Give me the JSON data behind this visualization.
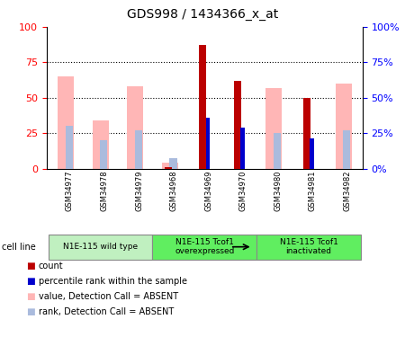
{
  "title": "GDS998 / 1434366_x_at",
  "samples": [
    "GSM34977",
    "GSM34978",
    "GSM34979",
    "GSM34968",
    "GSM34969",
    "GSM34970",
    "GSM34980",
    "GSM34981",
    "GSM34982"
  ],
  "groups": [
    {
      "label": "N1E-115 wild type",
      "indices": [
        0,
        1,
        2
      ],
      "color": "#c0f0c0"
    },
    {
      "label": "N1E-115 Tcof1\noverexpressed",
      "indices": [
        3,
        4,
        5
      ],
      "color": "#60ee60"
    },
    {
      "label": "N1E-115 Tcof1\ninactivated",
      "indices": [
        6,
        7,
        8
      ],
      "color": "#60ee60"
    }
  ],
  "absent_value": [
    65,
    34,
    58,
    4,
    0,
    0,
    57,
    0,
    60
  ],
  "absent_rank": [
    30,
    20,
    27,
    7,
    0,
    0,
    25,
    0,
    27
  ],
  "red_bars": [
    0,
    0,
    0,
    1,
    87,
    62,
    0,
    50,
    0
  ],
  "blue_bars": [
    0,
    0,
    0,
    0,
    36,
    29,
    0,
    21,
    0
  ],
  "ylim": [
    0,
    100
  ],
  "yticks": [
    0,
    25,
    50,
    75,
    100
  ],
  "color_red": "#bb0000",
  "color_blue": "#0000cc",
  "color_pink": "#ffb6b6",
  "color_lightblue": "#aabbdd",
  "bar_width": 0.55
}
